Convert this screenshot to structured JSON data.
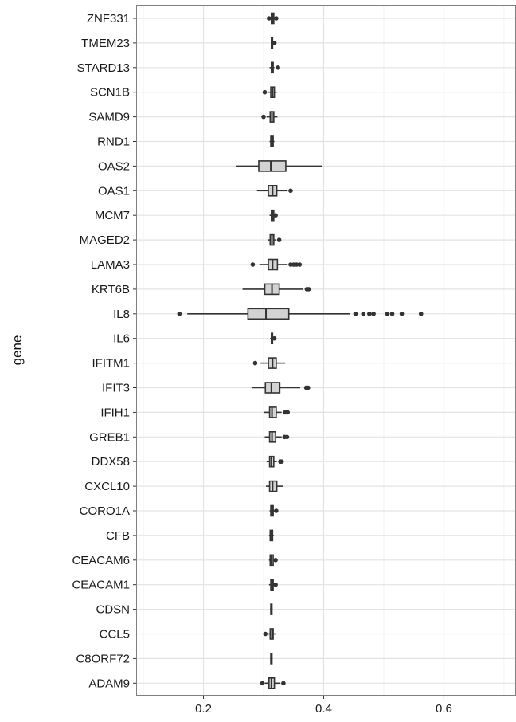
{
  "chart_data": {
    "type": "boxplot",
    "orientation": "horizontal",
    "title": "",
    "xlabel": "",
    "ylabel": "gene",
    "xlim": [
      0.088,
      0.72
    ],
    "x_ticks": [
      0.2,
      0.4,
      0.6
    ],
    "x_tick_labels": [
      "0.2",
      "0.4",
      "0.6"
    ],
    "grid": true,
    "theme": "bw",
    "colors": {
      "box_fill": "#d3d3d3",
      "box_stroke": "#333333",
      "outlier": "#333333",
      "grid_major": "#e3e3e3",
      "grid_minor": "#f2f2f2",
      "panel_border": "#7f7f7f"
    },
    "categories": [
      "ZNF331",
      "TMEM23",
      "STARD13",
      "SCN1B",
      "SAMD9",
      "RND1",
      "OAS2",
      "OAS1",
      "MCM7",
      "MAGED2",
      "LAMA3",
      "KRT6B",
      "IL8",
      "IL6",
      "IFITM1",
      "IFIT3",
      "IFIH1",
      "GREB1",
      "DDX58",
      "CXCL10",
      "CORO1A",
      "CFB",
      "CEACAM6",
      "CEACAM1",
      "CDSN",
      "CCL5",
      "C8ORF72",
      "ADAM9"
    ],
    "boxes": [
      {
        "gene": "ZNF331",
        "min": 0.311,
        "q1": 0.313,
        "median": 0.315,
        "q3": 0.317,
        "max": 0.319,
        "outliers": [
          0.309,
          0.321
        ]
      },
      {
        "gene": "TMEM23",
        "min": 0.312,
        "q1": 0.313,
        "median": 0.314,
        "q3": 0.315,
        "max": 0.317,
        "outliers": [
          0.318
        ]
      },
      {
        "gene": "STARD13",
        "min": 0.31,
        "q1": 0.313,
        "median": 0.314,
        "q3": 0.316,
        "max": 0.318,
        "outliers": [
          0.324
        ]
      },
      {
        "gene": "SCN1B",
        "min": 0.307,
        "q1": 0.312,
        "median": 0.315,
        "q3": 0.318,
        "max": 0.322,
        "outliers": [
          0.302
        ]
      },
      {
        "gene": "SAMD9",
        "min": 0.305,
        "q1": 0.311,
        "median": 0.314,
        "q3": 0.317,
        "max": 0.323,
        "outliers": [
          0.3
        ]
      },
      {
        "gene": "RND1",
        "min": 0.31,
        "q1": 0.312,
        "median": 0.314,
        "q3": 0.316,
        "max": 0.318,
        "outliers": []
      },
      {
        "gene": "OAS2",
        "min": 0.255,
        "q1": 0.292,
        "median": 0.312,
        "q3": 0.337,
        "max": 0.398,
        "outliers": []
      },
      {
        "gene": "OAS1",
        "min": 0.289,
        "q1": 0.308,
        "median": 0.315,
        "q3": 0.322,
        "max": 0.34,
        "outliers": [
          0.345
        ]
      },
      {
        "gene": "MCM7",
        "min": 0.31,
        "q1": 0.313,
        "median": 0.315,
        "q3": 0.317,
        "max": 0.319,
        "outliers": [
          0.32
        ]
      },
      {
        "gene": "MAGED2",
        "min": 0.307,
        "q1": 0.311,
        "median": 0.314,
        "q3": 0.317,
        "max": 0.321,
        "outliers": [
          0.326
        ]
      },
      {
        "gene": "LAMA3",
        "min": 0.293,
        "q1": 0.308,
        "median": 0.315,
        "q3": 0.323,
        "max": 0.34,
        "outliers": [
          0.282,
          0.345,
          0.35,
          0.355,
          0.36
        ]
      },
      {
        "gene": "KRT6B",
        "min": 0.265,
        "q1": 0.302,
        "median": 0.314,
        "q3": 0.326,
        "max": 0.366,
        "outliers": [
          0.372,
          0.375
        ]
      },
      {
        "gene": "IL8",
        "min": 0.173,
        "q1": 0.274,
        "median": 0.304,
        "q3": 0.342,
        "max": 0.444,
        "outliers": [
          0.16,
          0.453,
          0.466,
          0.476,
          0.483,
          0.506,
          0.514,
          0.53,
          0.562
        ]
      },
      {
        "gene": "IL6",
        "min": 0.311,
        "q1": 0.313,
        "median": 0.314,
        "q3": 0.315,
        "max": 0.317,
        "outliers": [
          0.318
        ]
      },
      {
        "gene": "IFITM1",
        "min": 0.295,
        "q1": 0.308,
        "median": 0.315,
        "q3": 0.321,
        "max": 0.336,
        "outliers": [
          0.286
        ]
      },
      {
        "gene": "IFIT3",
        "min": 0.28,
        "q1": 0.303,
        "median": 0.313,
        "q3": 0.327,
        "max": 0.361,
        "outliers": [
          0.371,
          0.374
        ]
      },
      {
        "gene": "IFIH1",
        "min": 0.3,
        "q1": 0.31,
        "median": 0.314,
        "q3": 0.321,
        "max": 0.33,
        "outliers": [
          0.336,
          0.34
        ]
      },
      {
        "gene": "GREB1",
        "min": 0.302,
        "q1": 0.31,
        "median": 0.314,
        "q3": 0.32,
        "max": 0.33,
        "outliers": [
          0.335,
          0.339
        ]
      },
      {
        "gene": "DDX58",
        "min": 0.305,
        "q1": 0.31,
        "median": 0.313,
        "q3": 0.317,
        "max": 0.322,
        "outliers": [
          0.328,
          0.33
        ]
      },
      {
        "gene": "CXCL10",
        "min": 0.304,
        "q1": 0.31,
        "median": 0.315,
        "q3": 0.322,
        "max": 0.332,
        "outliers": []
      },
      {
        "gene": "CORO1A",
        "min": 0.31,
        "q1": 0.312,
        "median": 0.314,
        "q3": 0.316,
        "max": 0.318,
        "outliers": [
          0.321
        ]
      },
      {
        "gene": "CFB",
        "min": 0.309,
        "q1": 0.311,
        "median": 0.313,
        "q3": 0.315,
        "max": 0.317,
        "outliers": []
      },
      {
        "gene": "CEACAM6",
        "min": 0.309,
        "q1": 0.311,
        "median": 0.313,
        "q3": 0.316,
        "max": 0.318,
        "outliers": [
          0.32
        ]
      },
      {
        "gene": "CEACAM1",
        "min": 0.309,
        "q1": 0.312,
        "median": 0.314,
        "q3": 0.316,
        "max": 0.318,
        "outliers": [
          0.32
        ]
      },
      {
        "gene": "CDSN",
        "min": 0.311,
        "q1": 0.312,
        "median": 0.313,
        "q3": 0.314,
        "max": 0.315,
        "outliers": []
      },
      {
        "gene": "CCL5",
        "min": 0.308,
        "q1": 0.311,
        "median": 0.314,
        "q3": 0.316,
        "max": 0.32,
        "outliers": [
          0.303
        ]
      },
      {
        "gene": "C8ORF72",
        "min": 0.311,
        "q1": 0.312,
        "median": 0.313,
        "q3": 0.314,
        "max": 0.315,
        "outliers": []
      },
      {
        "gene": "ADAM9",
        "min": 0.302,
        "q1": 0.309,
        "median": 0.313,
        "q3": 0.318,
        "max": 0.328,
        "outliers": [
          0.298,
          0.333
        ]
      }
    ]
  }
}
